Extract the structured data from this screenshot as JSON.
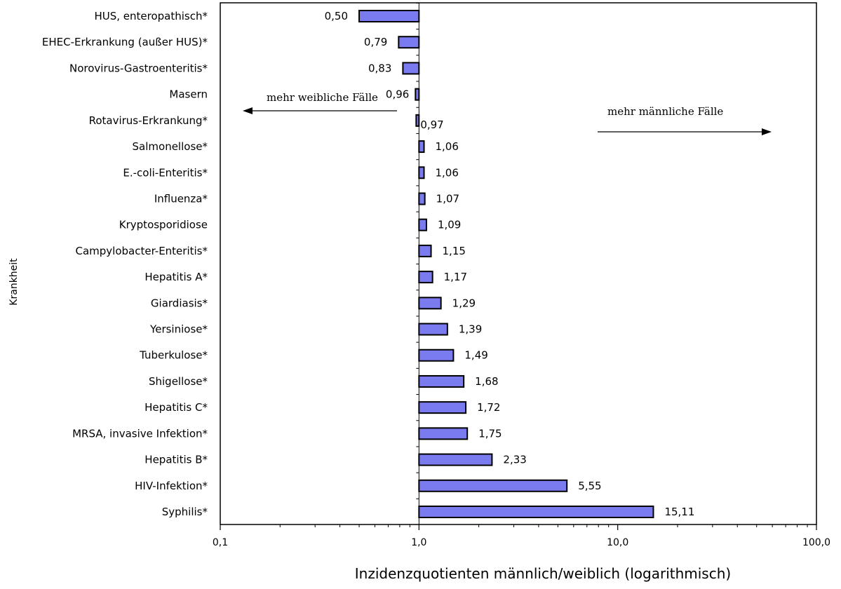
{
  "chart_data": {
    "type": "bar",
    "orientation": "horizontal",
    "title": "",
    "xlabel": "Inzidenzquotienten  männlich/weiblich (logarithmisch)",
    "ylabel": "Krankheit",
    "xscale": "log",
    "xlim": [
      0.1,
      100
    ],
    "x_ticks": [
      "0,1",
      "1,0",
      "10,0",
      "100,0"
    ],
    "reference_x": 1,
    "bar_color": "#7b7bf0",
    "categories": [
      "HUS, enteropathisch*",
      "EHEC-Erkrankung (außer HUS)*",
      "Norovirus-Gastroenteritis*",
      "Masern",
      "Rotavirus-Erkrankung*",
      "Salmonellose*",
      "E.-coli-Enteritis*",
      "Influenza*",
      "Kryptosporidiose",
      "Campylobacter-Enteritis*",
      "Hepatitis A*",
      "Giardiasis*",
      "Yersiniose*",
      "Tuberkulose*",
      "Shigellose*",
      "Hepatitis C*",
      "MRSA, invasive Infektion*",
      "Hepatitis B*",
      "HIV-Infektion*",
      "Syphilis*"
    ],
    "values": [
      0.5,
      0.79,
      0.83,
      0.96,
      0.97,
      1.06,
      1.06,
      1.07,
      1.09,
      1.15,
      1.17,
      1.29,
      1.39,
      1.49,
      1.68,
      1.72,
      1.75,
      2.33,
      5.55,
      15.11
    ],
    "value_labels": [
      "0,50",
      "0,79",
      "0,83",
      "0,96",
      "0,97",
      "1,06",
      "1,06",
      "1,07",
      "1,09",
      "1,15",
      "1,17",
      "1,29",
      "1,39",
      "1,49",
      "1,68",
      "1,72",
      "1,75",
      "2,33",
      "5,55",
      "15,11"
    ],
    "annotations": {
      "left": "mehr weibliche Fälle",
      "right": "mehr männliche Fälle"
    }
  }
}
